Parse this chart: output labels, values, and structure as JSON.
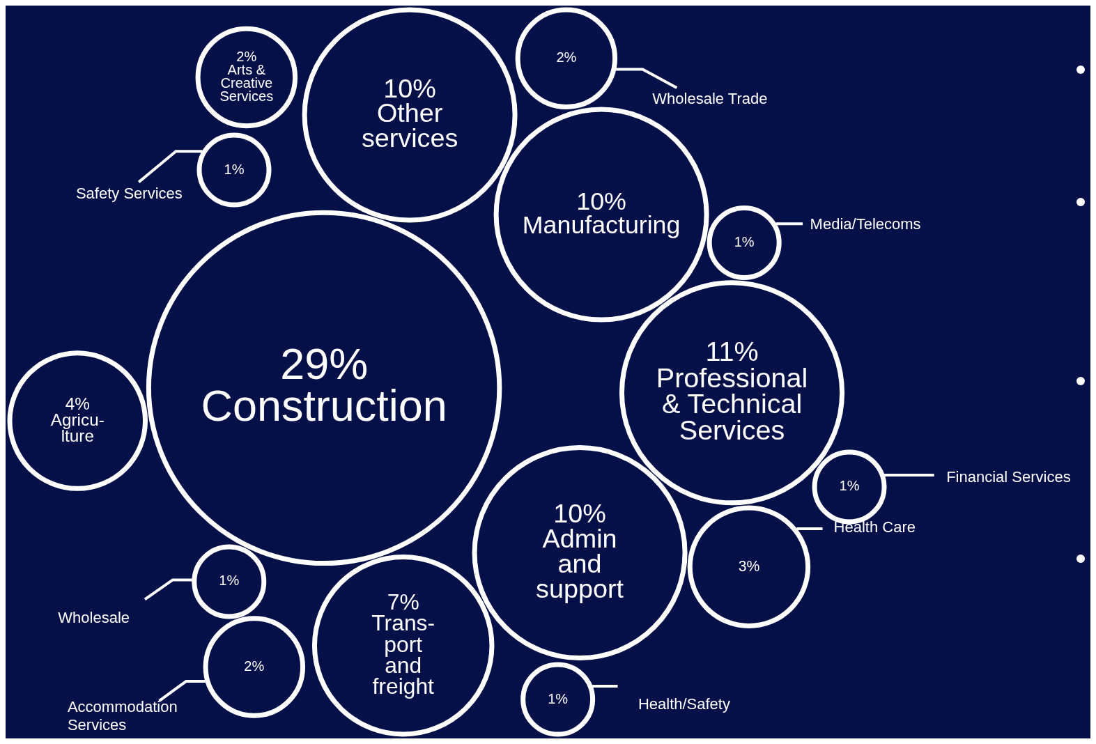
{
  "chart_data": {
    "type": "other",
    "categories": [
      "Construction",
      "Professional\n& Technical\nServices",
      "Other\nservices",
      "Manufacturing",
      "Admin\nand\nsupport",
      "Trans-\nport\nand\nfreight",
      "Agricu-\nlture",
      "Health Care",
      "Arts &\nCreative\nServices",
      "Wholesale Trade",
      "Accommodation\nServices",
      "Safety Services",
      "Media/Telecoms",
      "Financial Services",
      "Wholesale",
      "Health/Safety"
    ],
    "values": [
      29,
      11,
      10,
      10,
      10,
      7,
      4,
      3,
      2,
      2,
      2,
      1,
      1,
      1,
      1,
      1
    ],
    "value_labels": [
      "29%",
      "11%",
      "10%",
      "10%",
      "10%",
      "7%",
      "4%",
      "3%",
      "2%",
      "2%",
      "2%",
      "1%",
      "1%",
      "1%",
      "1%",
      "1%"
    ]
  }
}
